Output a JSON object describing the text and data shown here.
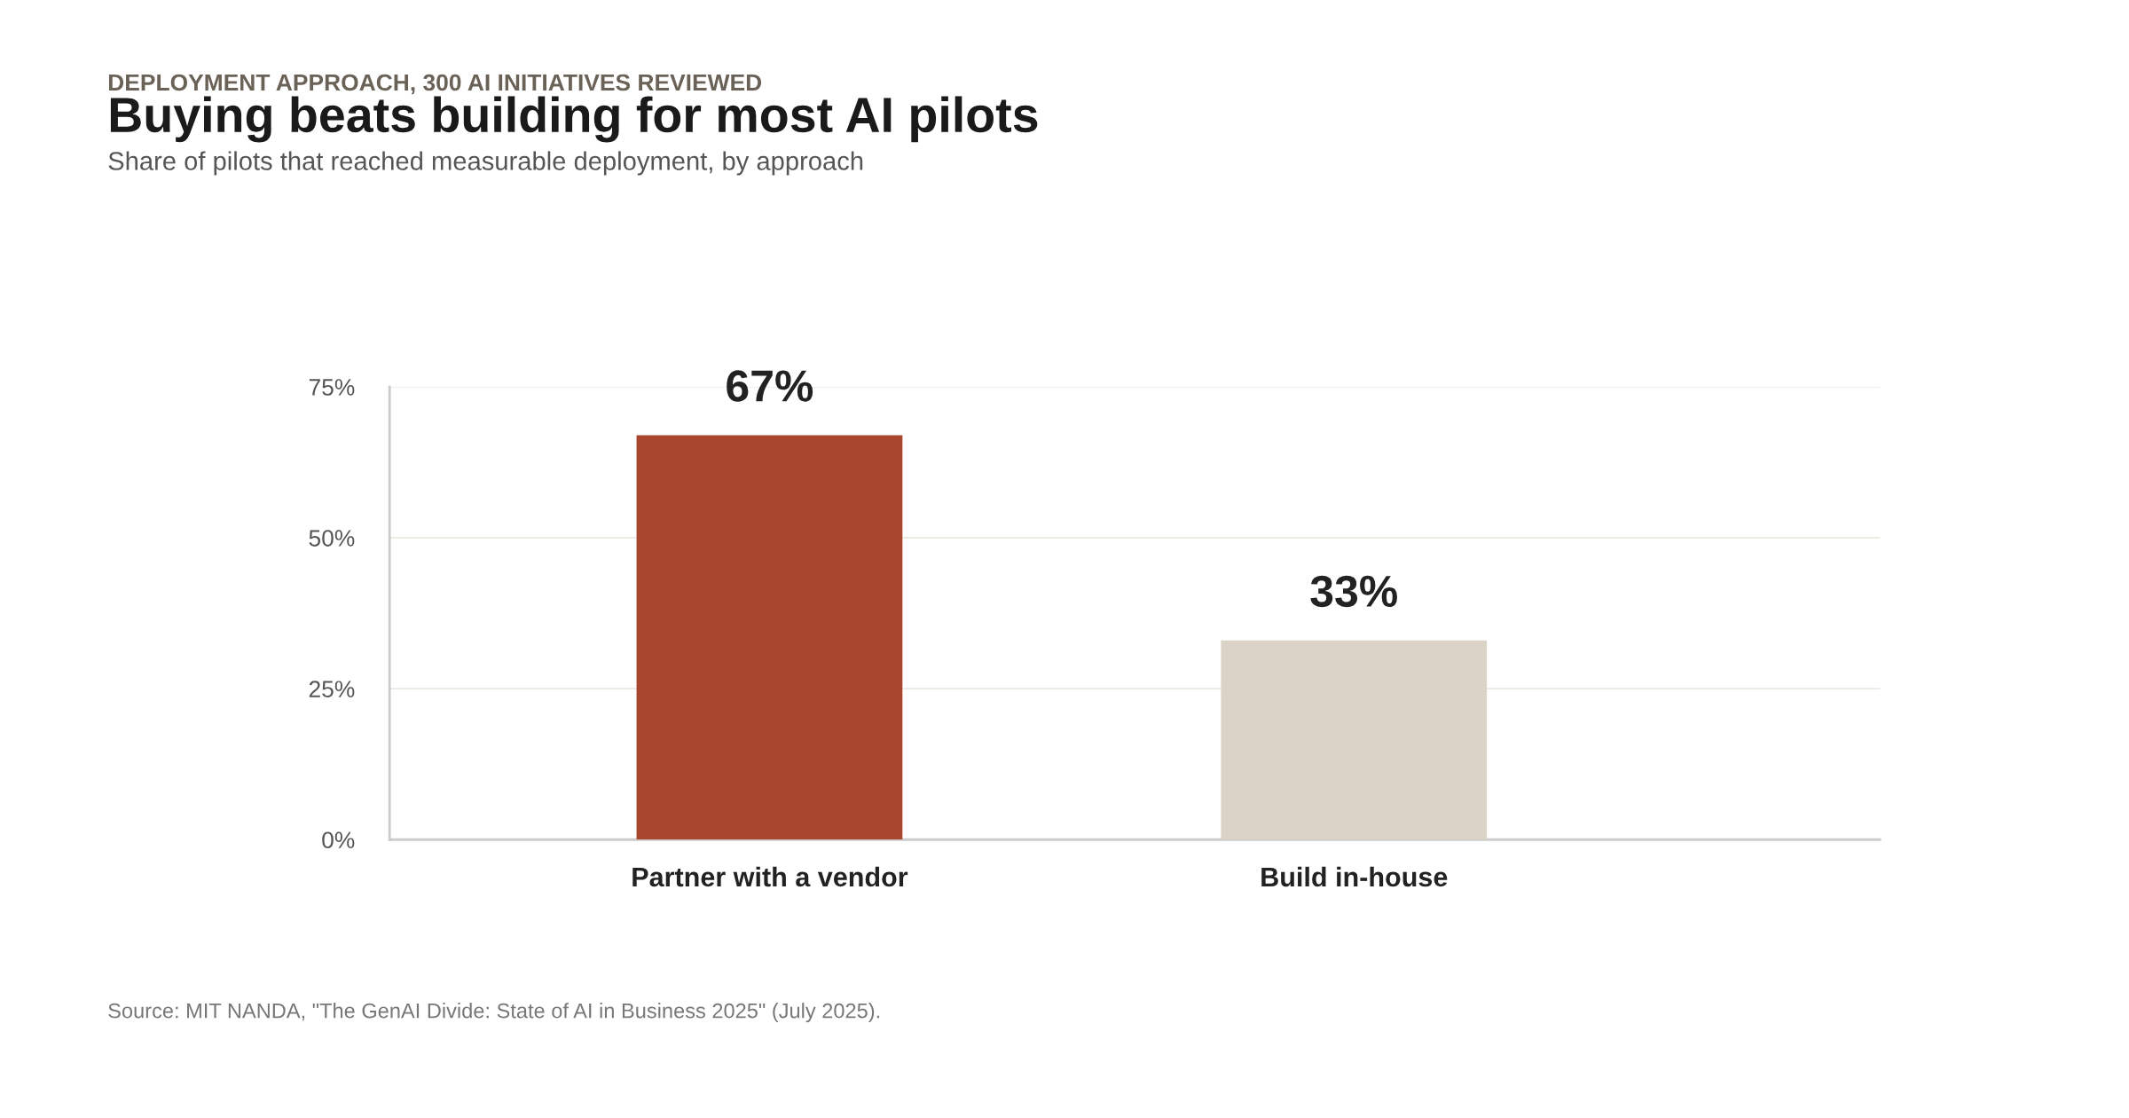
{
  "chart_data": {
    "type": "bar",
    "title": "Buying beats building for most AI pilots",
    "subtitle": "Share of pilots that reached measurable deployment, by approach",
    "annotations": [
      "DEPLOYMENT APPROACH, 300 AI INITIATIVES REVIEWED",
      "Source: MIT NANDA, \"The GenAI Divide: State of AI in Business 2025\" (July 2025)."
    ],
    "categories": [
      "Partner with a vendor",
      "Build in-house"
    ],
    "values": [
      67,
      33
    ],
    "colors": [
      "#a8472e",
      "#dad3c6"
    ],
    "value_labels": [
      "67%",
      "33%"
    ],
    "ylim": [
      0,
      75
    ],
    "yticks": [
      {
        "value": 0,
        "label": "0%"
      },
      {
        "value": 25,
        "label": "25%"
      },
      {
        "value": 50,
        "label": "50%"
      },
      {
        "value": 75,
        "label": "75%"
      }
    ],
    "grid": "y"
  }
}
